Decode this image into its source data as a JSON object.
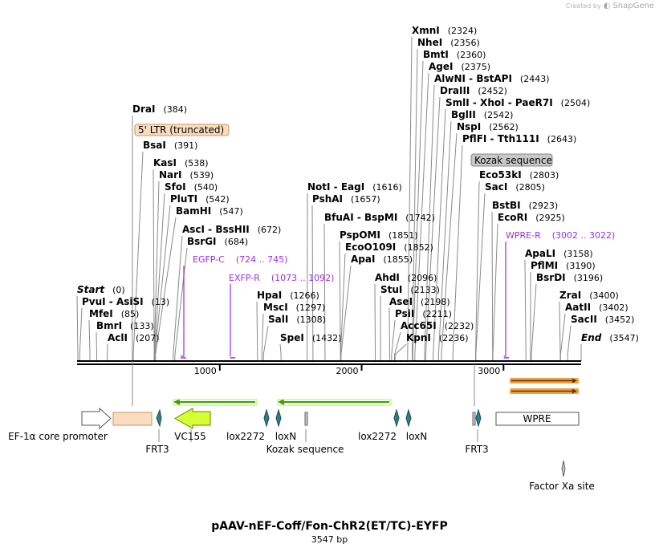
{
  "brand": {
    "created_by": "Created by",
    "product": "SnapGene"
  },
  "plasmid": {
    "name": "pAAV-nEF-Coff/Fon-ChR2(ET/TC)-EYFP",
    "length_label": "3547 bp",
    "length": 3547
  },
  "colors": {
    "primer": "#9b30d9",
    "ltr_fill": "#fbdcc0",
    "ltr_stroke": "#c8965f",
    "green_fill": "#d6ff33",
    "green_stroke": "#5a8a00",
    "arrow_green": "#3aa000",
    "teal": "#2f7f8a",
    "orange": "#f0a040",
    "gray_fill": "#c8c8c8"
  },
  "ruler_ticks": [
    {
      "bp": 1000,
      "label": "1000"
    },
    {
      "bp": 2000,
      "label": "2000"
    },
    {
      "bp": 3000,
      "label": "3000"
    }
  ],
  "sites": [
    {
      "name": "Start",
      "pos": "(0)",
      "bp": 0,
      "italic": true
    },
    {
      "name": "PvuI  -  AsiSI",
      "pos": "(13)",
      "bp": 13
    },
    {
      "name": "MfeI",
      "pos": "(85)",
      "bp": 85
    },
    {
      "name": "BmrI",
      "pos": "(133)",
      "bp": 133
    },
    {
      "name": "AclI",
      "pos": "(207)",
      "bp": 207
    },
    {
      "name": "DraI",
      "pos": "(384)",
      "bp": 384
    },
    {
      "name": "BsaI",
      "pos": "(391)",
      "bp": 391
    },
    {
      "name": "KasI",
      "pos": "(538)",
      "bp": 538
    },
    {
      "name": "NarI",
      "pos": "(539)",
      "bp": 539
    },
    {
      "name": "SfoI",
      "pos": "(540)",
      "bp": 540
    },
    {
      "name": "PluTI",
      "pos": "(542)",
      "bp": 542
    },
    {
      "name": "BamHI",
      "pos": "(547)",
      "bp": 547
    },
    {
      "name": "AscI  -  BssHII",
      "pos": "(672)",
      "bp": 672
    },
    {
      "name": "BsrGI",
      "pos": "(684)",
      "bp": 684
    },
    {
      "name": "HpaI",
      "pos": "(1266)",
      "bp": 1266
    },
    {
      "name": "MscI",
      "pos": "(1297)",
      "bp": 1297
    },
    {
      "name": "SalI",
      "pos": "(1308)",
      "bp": 1308
    },
    {
      "name": "SpeI",
      "pos": "(1432)",
      "bp": 1432
    },
    {
      "name": "NotI  -  EagI",
      "pos": "(1616)",
      "bp": 1616
    },
    {
      "name": "PshAI",
      "pos": "(1657)",
      "bp": 1657
    },
    {
      "name": "BfuAI  -  BspMI",
      "pos": "(1742)",
      "bp": 1742
    },
    {
      "name": "PspOMI",
      "pos": "(1851)",
      "bp": 1851
    },
    {
      "name": "EcoO109I",
      "pos": "(1852)",
      "bp": 1852
    },
    {
      "name": "ApaI",
      "pos": "(1855)",
      "bp": 1855
    },
    {
      "name": "AhdI",
      "pos": "(2096)",
      "bp": 2096
    },
    {
      "name": "StuI",
      "pos": "(2133)",
      "bp": 2133
    },
    {
      "name": "AseI",
      "pos": "(2198)",
      "bp": 2198
    },
    {
      "name": "PsiI",
      "pos": "(2211)",
      "bp": 2211
    },
    {
      "name": "Acc65I",
      "pos": "(2232)",
      "bp": 2232
    },
    {
      "name": "KpnI",
      "pos": "(2236)",
      "bp": 2236
    },
    {
      "name": "XmnI",
      "pos": "(2324)",
      "bp": 2324
    },
    {
      "name": "NheI",
      "pos": "(2356)",
      "bp": 2356
    },
    {
      "name": "BmtI",
      "pos": "(2360)",
      "bp": 2360
    },
    {
      "name": "AgeI",
      "pos": "(2375)",
      "bp": 2375
    },
    {
      "name": "AlwNI  -  BstAPI",
      "pos": "(2443)",
      "bp": 2443
    },
    {
      "name": "DraIII",
      "pos": "(2452)",
      "bp": 2452
    },
    {
      "name": "SmlI  -  XhoI  -  PaeR7I",
      "pos": "(2504)",
      "bp": 2504
    },
    {
      "name": "BglII",
      "pos": "(2542)",
      "bp": 2542
    },
    {
      "name": "NspI",
      "pos": "(2562)",
      "bp": 2562
    },
    {
      "name": "PflFI  -  Tth111I",
      "pos": "(2643)",
      "bp": 2643
    },
    {
      "name": "Eco53kI",
      "pos": "(2803)",
      "bp": 2803
    },
    {
      "name": "SacI",
      "pos": "(2805)",
      "bp": 2805
    },
    {
      "name": "BstBI",
      "pos": "(2923)",
      "bp": 2923
    },
    {
      "name": "EcoRI",
      "pos": "(2925)",
      "bp": 2925
    },
    {
      "name": "ApaLI",
      "pos": "(3158)",
      "bp": 3158
    },
    {
      "name": "PflMI",
      "pos": "(3190)",
      "bp": 3190
    },
    {
      "name": "BsrDI",
      "pos": "(3196)",
      "bp": 3196
    },
    {
      "name": "ZraI",
      "pos": "(3400)",
      "bp": 3400
    },
    {
      "name": "AatII",
      "pos": "(3402)",
      "bp": 3402
    },
    {
      "name": "SacII",
      "pos": "(3452)",
      "bp": 3452
    },
    {
      "name": "End",
      "pos": "(3547)",
      "bp": 3547,
      "italic": true
    }
  ],
  "primers": [
    {
      "name": "EGFP-C",
      "range": "(724 .. 745)",
      "start": 724,
      "end": 745
    },
    {
      "name": "EXFP-R",
      "range": "(1073 .. 1092)",
      "start": 1073,
      "end": 1092
    },
    {
      "name": "WPRE-R",
      "range": "(3002 .. 3022)",
      "start": 3002,
      "end": 3022
    }
  ],
  "features": [
    {
      "label": "5' LTR (truncated)",
      "start": 384,
      "end": 391,
      "kind": "ltr"
    },
    {
      "label": "Kozak sequence",
      "start": 2803,
      "end": 2805,
      "kind": "kozak-upper"
    },
    {
      "label": "EF-1α core promoter",
      "kind": "promoter"
    },
    {
      "label": "VC155",
      "kind": "cds"
    },
    {
      "label": "lox2272",
      "kind": "site"
    },
    {
      "label": "loxN",
      "kind": "site"
    },
    {
      "label": "Kozak sequence",
      "kind": "kozak-lower"
    },
    {
      "label": "lox2272",
      "kind": "site"
    },
    {
      "label": "loxN",
      "kind": "site"
    },
    {
      "label": "FRT3",
      "kind": "site"
    },
    {
      "label": "FRT3",
      "kind": "site"
    },
    {
      "label": "WPRE",
      "kind": "box"
    },
    {
      "label": "Factor Xa site",
      "kind": "site"
    }
  ]
}
